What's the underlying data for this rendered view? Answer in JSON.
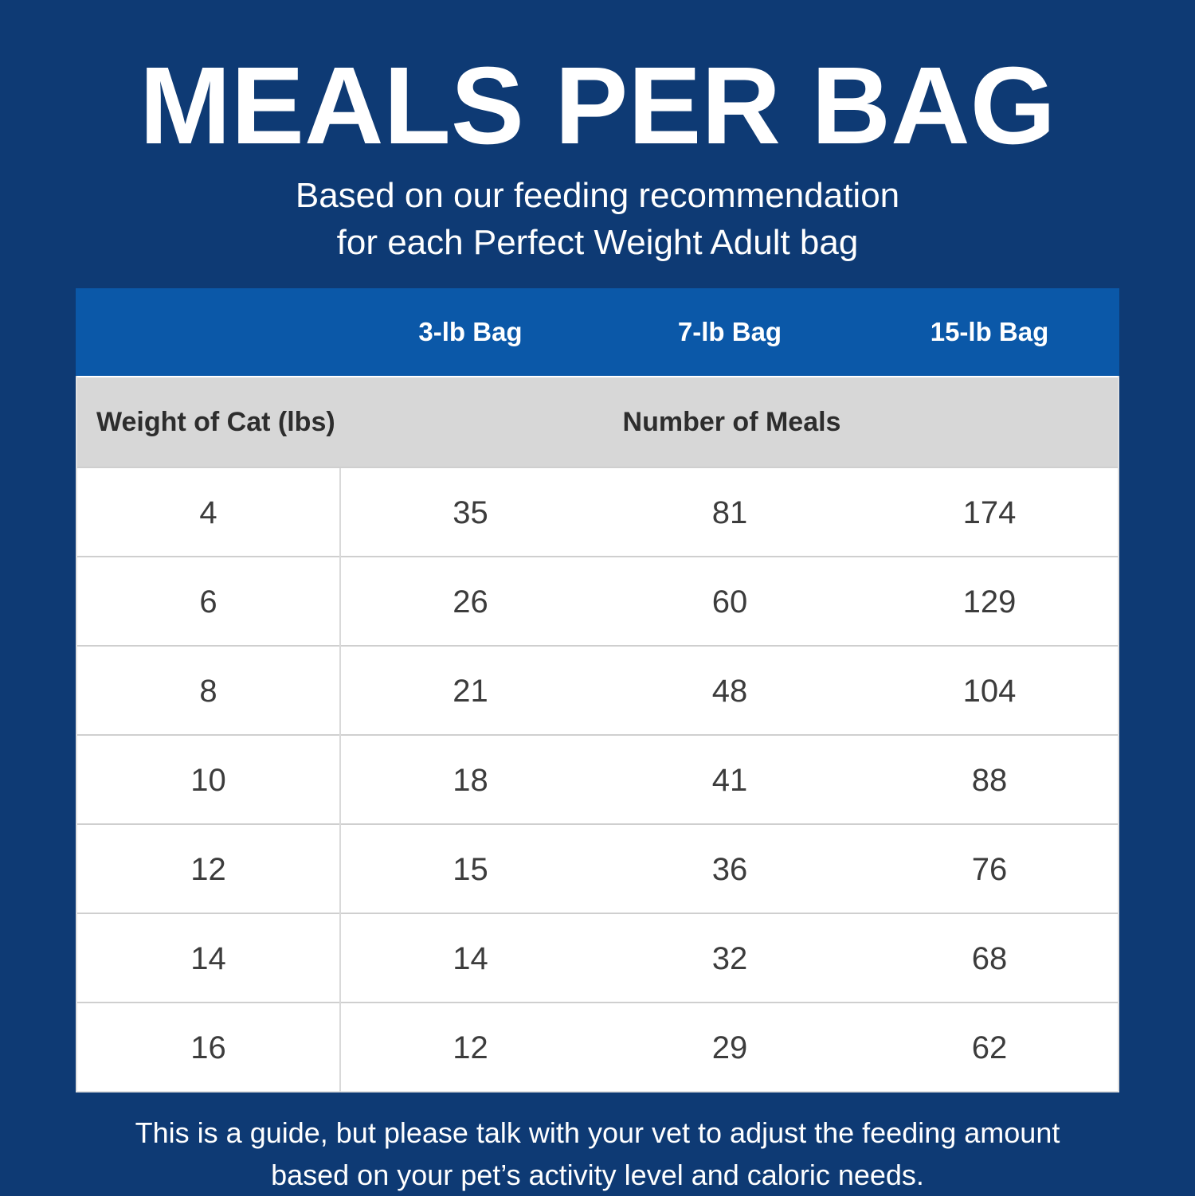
{
  "header": {
    "title": "MEALS PER BAG",
    "subtitle_line1": "Based on our feeding recommendation",
    "subtitle_line2": "for each Perfect Weight Adult bag"
  },
  "footer": {
    "line1": "This is a guide, but please talk with your vet to adjust the feeding amount",
    "line2": "based on your pet’s activity level and caloric needs."
  },
  "colors": {
    "background_navy": "#0e3a74",
    "header_blue": "#0b58a8",
    "subheader_gray": "#d7d7d7",
    "row_border": "#cfcfcf",
    "cell_text": "#3c3c3c",
    "white": "#ffffff"
  },
  "chart_data": {
    "type": "table",
    "title": "MEALS PER BAG",
    "columns": [
      "",
      "3-lb Bag",
      "7-lb Bag",
      "15-lb Bag"
    ],
    "row_header_label": "Weight of Cat (lbs)",
    "value_group_label": "Number of Meals",
    "rows": [
      {
        "weight": "4",
        "meals": [
          "35",
          "81",
          "174"
        ]
      },
      {
        "weight": "6",
        "meals": [
          "26",
          "60",
          "129"
        ]
      },
      {
        "weight": "8",
        "meals": [
          "21",
          "48",
          "104"
        ]
      },
      {
        "weight": "10",
        "meals": [
          "18",
          "41",
          "88"
        ]
      },
      {
        "weight": "12",
        "meals": [
          "15",
          "36",
          "76"
        ]
      },
      {
        "weight": "14",
        "meals": [
          "14",
          "32",
          "68"
        ]
      },
      {
        "weight": "16",
        "meals": [
          "12",
          "29",
          "62"
        ]
      }
    ]
  }
}
